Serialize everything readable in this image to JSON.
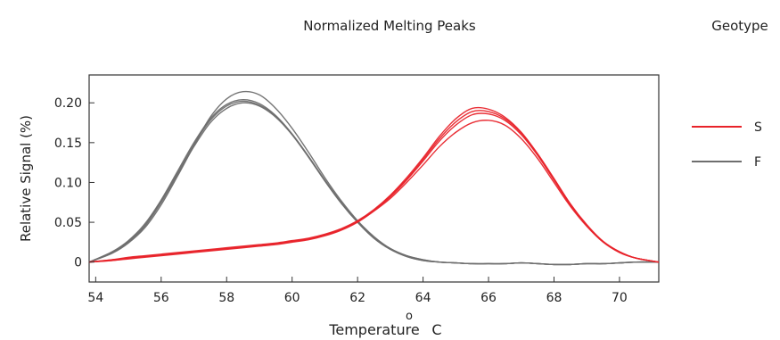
{
  "chart_data": {
    "type": "line",
    "title": "Normalized Melting Peaks",
    "legend_title": "Geotype",
    "xlabel": "Temperature",
    "xlabel_unit_symbol": "o",
    "xlabel_unit_letter": "C",
    "ylabel": "Relative Signal (%)",
    "xlim": [
      53.8,
      71.2
    ],
    "ylim": [
      -0.025,
      0.235
    ],
    "xticks": [
      54,
      56,
      58,
      60,
      62,
      64,
      66,
      68,
      70
    ],
    "xtick_labels": [
      "54",
      "56",
      "58",
      "60",
      "62",
      "64",
      "66",
      "68",
      "70"
    ],
    "yticks": [
      0,
      0.05,
      0.1,
      0.15,
      0.2
    ],
    "ytick_labels": [
      "0",
      "0.05",
      "0.10",
      "0.15",
      "0.20"
    ],
    "legend_placement": "right",
    "grid": false,
    "x": [
      53.8,
      54.5,
      55.0,
      55.5,
      56.0,
      56.5,
      57.0,
      57.5,
      58.0,
      58.5,
      59.0,
      59.5,
      60.0,
      60.5,
      61.0,
      61.5,
      62.0,
      62.5,
      63.0,
      63.5,
      64.0,
      64.5,
      65.0,
      65.5,
      66.0,
      66.5,
      67.0,
      67.5,
      68.0,
      68.5,
      69.0,
      69.5,
      70.0,
      70.5,
      71.2
    ],
    "series": [
      {
        "name": "S",
        "color": "#e8232a",
        "curves": [
          [
            0.0,
            0.002,
            0.004,
            0.006,
            0.008,
            0.01,
            0.012,
            0.014,
            0.016,
            0.018,
            0.02,
            0.022,
            0.025,
            0.028,
            0.033,
            0.04,
            0.05,
            0.064,
            0.08,
            0.1,
            0.122,
            0.145,
            0.163,
            0.175,
            0.178,
            0.172,
            0.155,
            0.13,
            0.1,
            0.07,
            0.045,
            0.025,
            0.012,
            0.005,
            0.0
          ],
          [
            0.0,
            0.003,
            0.005,
            0.007,
            0.009,
            0.011,
            0.013,
            0.015,
            0.017,
            0.019,
            0.021,
            0.023,
            0.026,
            0.029,
            0.034,
            0.041,
            0.051,
            0.065,
            0.082,
            0.103,
            0.127,
            0.152,
            0.172,
            0.185,
            0.186,
            0.178,
            0.16,
            0.134,
            0.103,
            0.072,
            0.046,
            0.026,
            0.013,
            0.005,
            0.0
          ],
          [
            0.0,
            0.003,
            0.006,
            0.008,
            0.01,
            0.012,
            0.014,
            0.016,
            0.018,
            0.02,
            0.022,
            0.024,
            0.027,
            0.03,
            0.035,
            0.042,
            0.052,
            0.066,
            0.084,
            0.106,
            0.131,
            0.158,
            0.18,
            0.193,
            0.192,
            0.182,
            0.163,
            0.136,
            0.105,
            0.073,
            0.047,
            0.026,
            0.013,
            0.005,
            0.0
          ],
          [
            0.0,
            0.002,
            0.005,
            0.007,
            0.009,
            0.011,
            0.013,
            0.015,
            0.017,
            0.019,
            0.021,
            0.023,
            0.026,
            0.029,
            0.034,
            0.041,
            0.051,
            0.065,
            0.083,
            0.104,
            0.129,
            0.155,
            0.176,
            0.189,
            0.189,
            0.18,
            0.162,
            0.135,
            0.104,
            0.073,
            0.046,
            0.026,
            0.013,
            0.005,
            0.0
          ]
        ]
      },
      {
        "name": "F",
        "color": "#6e6e6e",
        "curves": [
          [
            0.0,
            0.012,
            0.025,
            0.045,
            0.075,
            0.11,
            0.145,
            0.175,
            0.193,
            0.2,
            0.196,
            0.182,
            0.16,
            0.132,
            0.102,
            0.074,
            0.05,
            0.03,
            0.016,
            0.007,
            0.002,
            0.0,
            -0.001,
            -0.002,
            -0.002,
            -0.002,
            -0.001,
            -0.002,
            -0.003,
            -0.003,
            -0.002,
            -0.002,
            -0.001,
            0.0,
            0.0
          ],
          [
            0.0,
            0.013,
            0.027,
            0.048,
            0.078,
            0.114,
            0.15,
            0.18,
            0.198,
            0.204,
            0.199,
            0.184,
            0.161,
            0.133,
            0.103,
            0.075,
            0.051,
            0.031,
            0.017,
            0.008,
            0.003,
            0.0,
            -0.001,
            -0.002,
            -0.002,
            -0.002,
            -0.001,
            -0.002,
            -0.003,
            -0.003,
            -0.002,
            -0.002,
            -0.001,
            0.0,
            0.0
          ],
          [
            0.0,
            0.011,
            0.024,
            0.043,
            0.072,
            0.108,
            0.146,
            0.182,
            0.205,
            0.214,
            0.21,
            0.193,
            0.168,
            0.138,
            0.106,
            0.077,
            0.052,
            0.032,
            0.017,
            0.008,
            0.003,
            0.0,
            -0.001,
            -0.002,
            -0.002,
            -0.002,
            -0.001,
            -0.002,
            -0.003,
            -0.003,
            -0.002,
            -0.002,
            -0.001,
            0.0,
            0.0
          ],
          [
            0.0,
            0.012,
            0.026,
            0.046,
            0.077,
            0.112,
            0.148,
            0.178,
            0.196,
            0.202,
            0.197,
            0.183,
            0.16,
            0.132,
            0.102,
            0.074,
            0.05,
            0.03,
            0.016,
            0.007,
            0.002,
            0.0,
            -0.001,
            -0.002,
            -0.002,
            -0.002,
            -0.001,
            -0.002,
            -0.003,
            -0.003,
            -0.002,
            -0.002,
            -0.001,
            0.0,
            0.0
          ]
        ]
      }
    ]
  }
}
